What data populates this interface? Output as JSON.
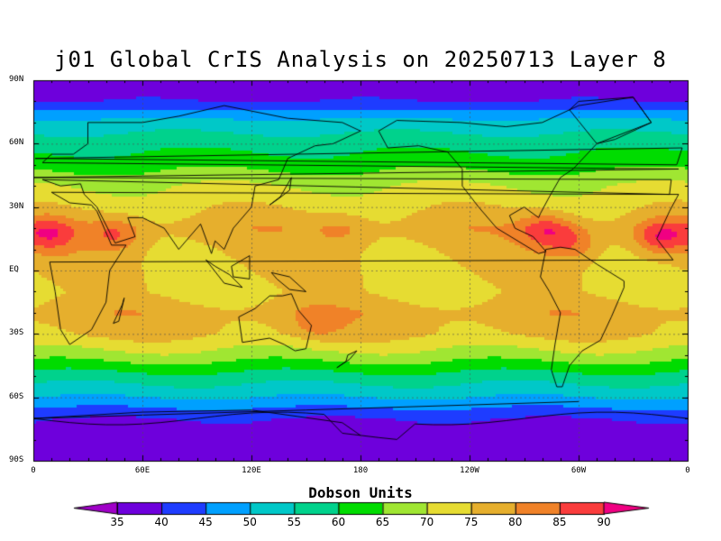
{
  "title": "j01 Global CrIS Analysis on 20250713 Layer 8",
  "units_label": "Dobson Units",
  "lat_ticks": [
    {
      "label": "90N",
      "lat": 90
    },
    {
      "label": "60N",
      "lat": 60
    },
    {
      "label": "30N",
      "lat": 30
    },
    {
      "label": "EQ",
      "lat": 0
    },
    {
      "label": "30S",
      "lat": -30
    },
    {
      "label": "60S",
      "lat": -60
    },
    {
      "label": "90S",
      "lat": -90
    }
  ],
  "lon_ticks": [
    {
      "label": "0",
      "lon": 0
    },
    {
      "label": "60E",
      "lon": 60
    },
    {
      "label": "120E",
      "lon": 120
    },
    {
      "label": "180",
      "lon": 180
    },
    {
      "label": "120W",
      "lon": 240
    },
    {
      "label": "60W",
      "lon": 300
    },
    {
      "label": "0",
      "lon": 360
    }
  ],
  "colorbar": {
    "ticks": [
      "35",
      "40",
      "45",
      "50",
      "55",
      "60",
      "65",
      "70",
      "75",
      "80",
      "85",
      "90"
    ],
    "colors": [
      "#a000c8",
      "#6e00dc",
      "#1e3cff",
      "#00a0ff",
      "#00c8c8",
      "#00d28c",
      "#00dc00",
      "#a0e632",
      "#e6dc32",
      "#e6af2d",
      "#f08228",
      "#fa3c3c",
      "#f00082"
    ]
  },
  "chart_data": {
    "type": "heatmap",
    "title": "j01 Global CrIS Analysis on 20250713 Layer 8",
    "xlabel": "",
    "ylabel": "",
    "xlim": [
      0,
      360
    ],
    "ylim": [
      -90,
      90
    ],
    "colorbar_label": "Dobson Units",
    "levels": [
      35,
      40,
      45,
      50,
      55,
      60,
      65,
      70,
      75,
      80,
      85,
      90
    ],
    "grid": true,
    "zonal_profile": [
      {
        "lat": 90,
        "value": 38
      },
      {
        "lat": 80,
        "value": 40
      },
      {
        "lat": 70,
        "value": 52
      },
      {
        "lat": 60,
        "value": 58
      },
      {
        "lat": 50,
        "value": 63
      },
      {
        "lat": 40,
        "value": 70
      },
      {
        "lat": 30,
        "value": 74
      },
      {
        "lat": 20,
        "value": 78
      },
      {
        "lat": 10,
        "value": 76
      },
      {
        "lat": 0,
        "value": 75
      },
      {
        "lat": -10,
        "value": 74
      },
      {
        "lat": -20,
        "value": 78
      },
      {
        "lat": -30,
        "value": 76
      },
      {
        "lat": -40,
        "value": 68
      },
      {
        "lat": -50,
        "value": 58
      },
      {
        "lat": -60,
        "value": 50
      },
      {
        "lat": -70,
        "value": 40
      },
      {
        "lat": -80,
        "value": 37
      },
      {
        "lat": -90,
        "value": 36
      }
    ],
    "hotspots": [
      {
        "lon": 10,
        "lat": 17,
        "value": 88
      },
      {
        "lon": 45,
        "lat": 17,
        "value": 86
      },
      {
        "lon": 282,
        "lat": 19,
        "value": 89
      },
      {
        "lon": 345,
        "lat": 16,
        "value": 90
      },
      {
        "lon": 297,
        "lat": 13,
        "value": 85
      },
      {
        "lon": 155,
        "lat": -25,
        "value": 82
      },
      {
        "lon": 170,
        "lat": 19,
        "value": 82
      }
    ]
  }
}
